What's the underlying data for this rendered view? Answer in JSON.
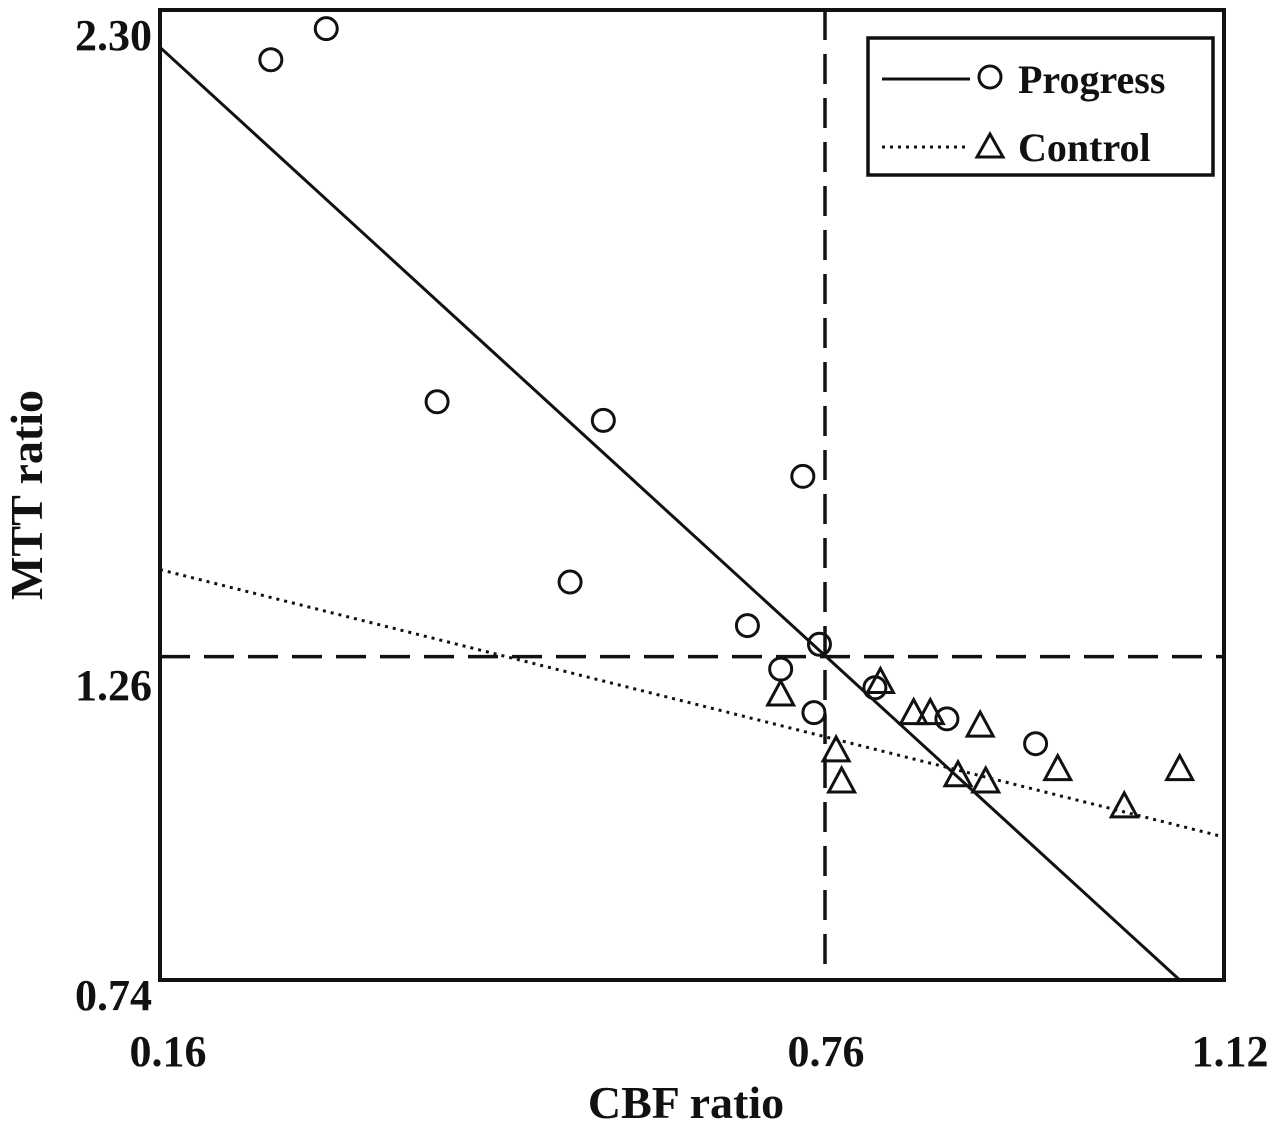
{
  "chart_data": {
    "type": "scatter",
    "title": "",
    "xlabel": "CBF ratio",
    "ylabel": "MTT ratio",
    "xlim": [
      0.16,
      1.12
    ],
    "ylim": [
      0.74,
      2.3
    ],
    "x_ticks": [
      "0.16",
      "0.76",
      "1.12"
    ],
    "y_ticks": [
      "2.30",
      "1.26",
      "0.74"
    ],
    "grid": false,
    "legend_position": "top-right",
    "reference_lines": {
      "x": 0.76,
      "y": 1.26
    },
    "series": [
      {
        "name": "Progress",
        "marker": "circle",
        "line_style": "solid",
        "points": [
          {
            "x": 0.26,
            "y": 2.22
          },
          {
            "x": 0.31,
            "y": 2.27
          },
          {
            "x": 0.41,
            "y": 1.67
          },
          {
            "x": 0.53,
            "y": 1.38
          },
          {
            "x": 0.56,
            "y": 1.64
          },
          {
            "x": 0.69,
            "y": 1.31
          },
          {
            "x": 0.72,
            "y": 1.24
          },
          {
            "x": 0.74,
            "y": 1.55
          },
          {
            "x": 0.75,
            "y": 1.17
          },
          {
            "x": 0.755,
            "y": 1.28
          },
          {
            "x": 0.805,
            "y": 1.21
          },
          {
            "x": 0.87,
            "y": 1.16
          },
          {
            "x": 0.95,
            "y": 1.12
          }
        ],
        "fit_line": [
          {
            "x": 0.16,
            "y": 2.24
          },
          {
            "x": 1.08,
            "y": 0.74
          }
        ]
      },
      {
        "name": "Control",
        "marker": "triangle",
        "line_style": "dotted",
        "points": [
          {
            "x": 0.72,
            "y": 1.2
          },
          {
            "x": 0.77,
            "y": 1.11
          },
          {
            "x": 0.775,
            "y": 1.06
          },
          {
            "x": 0.81,
            "y": 1.22
          },
          {
            "x": 0.84,
            "y": 1.17
          },
          {
            "x": 0.855,
            "y": 1.17
          },
          {
            "x": 0.88,
            "y": 1.07
          },
          {
            "x": 0.9,
            "y": 1.15
          },
          {
            "x": 0.905,
            "y": 1.06
          },
          {
            "x": 0.97,
            "y": 1.08
          },
          {
            "x": 1.03,
            "y": 1.02
          },
          {
            "x": 1.08,
            "y": 1.08
          }
        ],
        "fit_line": [
          {
            "x": 0.16,
            "y": 1.4
          },
          {
            "x": 1.12,
            "y": 0.97
          }
        ]
      }
    ]
  }
}
